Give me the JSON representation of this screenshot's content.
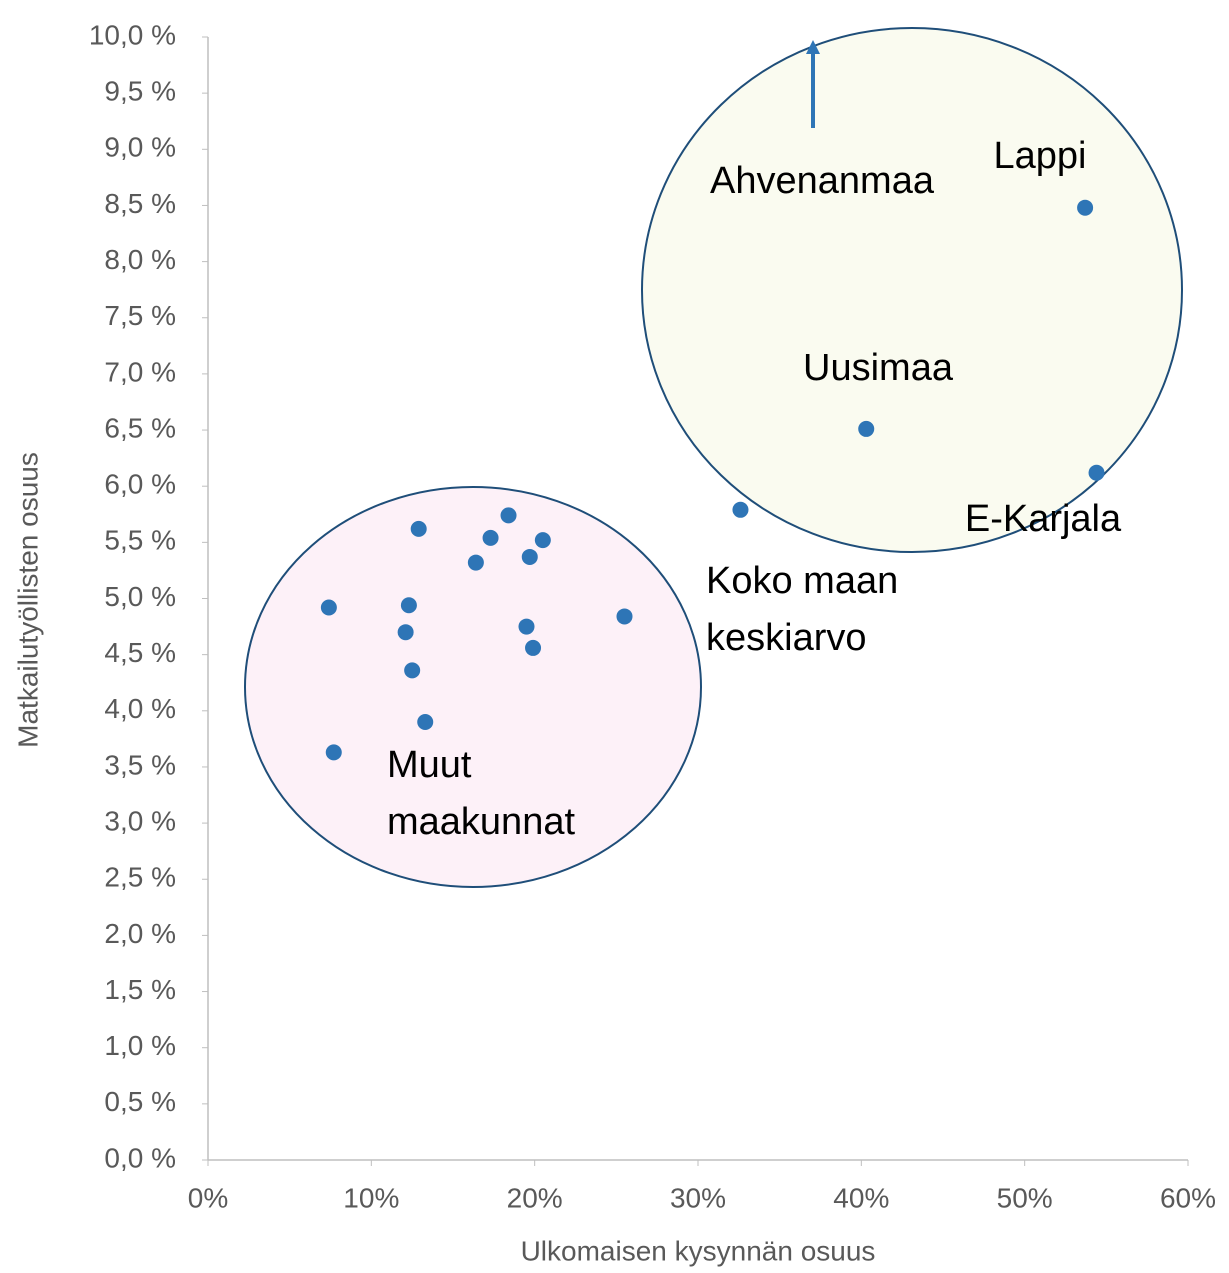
{
  "chart_data": {
    "type": "scatter",
    "x_label": "Ulkomaisen kysynnän osuus",
    "y_label": "Matkailutyöllisten osuus",
    "x": [
      53.7,
      40.3,
      54.4,
      32.6,
      7.4,
      7.7,
      12.9,
      12.3,
      12.1,
      12.5,
      13.3,
      16.4,
      17.3,
      18.4,
      19.7,
      20.5,
      19.5,
      19.9,
      25.5
    ],
    "values": [
      8.48,
      6.51,
      6.12,
      5.79,
      4.92,
      3.63,
      5.62,
      4.94,
      4.7,
      4.36,
      3.9,
      5.32,
      5.54,
      5.74,
      5.37,
      5.52,
      4.75,
      4.56,
      4.84
    ],
    "color": "#2e75b6",
    "xlim": [
      0,
      60
    ],
    "xticks": [
      {
        "value": 0,
        "label": "0%"
      },
      {
        "value": 10,
        "label": "10%"
      },
      {
        "value": 20,
        "label": "20%"
      },
      {
        "value": 30,
        "label": "30%"
      },
      {
        "value": 40,
        "label": "40%"
      },
      {
        "value": 50,
        "label": "50%"
      },
      {
        "value": 60,
        "label": "60%"
      }
    ],
    "ylim": [
      0,
      10
    ],
    "yticks": [
      {
        "value": 0,
        "label": "0,0 %"
      },
      {
        "value": 0.5,
        "label": "0,5 %"
      },
      {
        "value": 1,
        "label": "1,0 %"
      },
      {
        "value": 1.5,
        "label": "1,5 %"
      },
      {
        "value": 2,
        "label": "2,0 %"
      },
      {
        "value": 2.5,
        "label": "2,5 %"
      },
      {
        "value": 3,
        "label": "3,0 %"
      },
      {
        "value": 3.5,
        "label": "3,5 %"
      },
      {
        "value": 4,
        "label": "4,0 %"
      },
      {
        "value": 4.5,
        "label": "4,5 %"
      },
      {
        "value": 5,
        "label": "5,0 %"
      },
      {
        "value": 5.5,
        "label": "5,5 %"
      },
      {
        "value": 6,
        "label": "6,0 %"
      },
      {
        "value": 6.5,
        "label": "6,5 %"
      },
      {
        "value": 7,
        "label": "7,0 %"
      },
      {
        "value": 7.5,
        "label": "7,5 %"
      },
      {
        "value": 8,
        "label": "8,0 %"
      },
      {
        "value": 8.5,
        "label": "8,5 %"
      },
      {
        "value": 9,
        "label": "9,0 %"
      },
      {
        "value": 9.5,
        "label": "9,5 %"
      },
      {
        "value": 10,
        "label": "10,0 %"
      }
    ],
    "grid": false,
    "annotations": [
      [
        "Lappi"
      ],
      [
        "Ahvenanmaa"
      ],
      [
        "Uusimaa"
      ],
      [
        "E-Karjala"
      ],
      [
        "Koko maan",
        "keskiarvo"
      ],
      [
        "Muut",
        "maakunnat"
      ]
    ]
  }
}
